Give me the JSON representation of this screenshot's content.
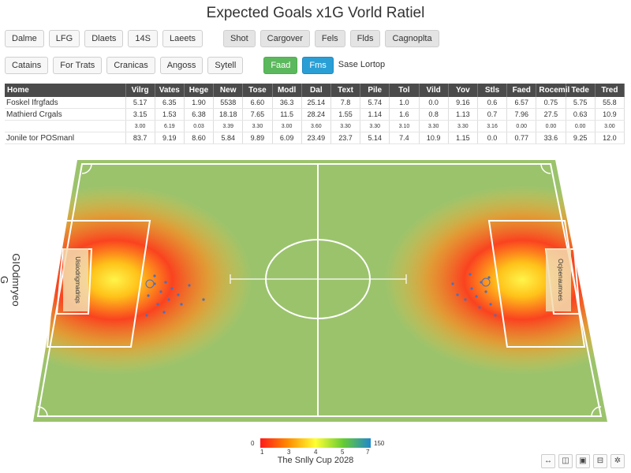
{
  "title": "Expected Goals x1G Vorld Ratiel",
  "toolbar1": {
    "left": [
      "Dalme",
      "LFG",
      "Dlaets",
      "14S",
      "Laeets"
    ],
    "right": [
      "Shot",
      "Cargover",
      "Fels",
      "Flds",
      "Cagnoplta"
    ]
  },
  "toolbar2": {
    "buttons": [
      "Catains",
      "For Trats",
      "Cranicas",
      "Angoss",
      "Sytell"
    ],
    "green": "Faad",
    "blue": "Fms",
    "link": "Sase Lortop"
  },
  "table": {
    "columns": [
      "Home",
      "Vilrg",
      "Vates",
      "Hege",
      "New",
      "Tose",
      "Modl",
      "Dal",
      "Text",
      "Pile",
      "Tol",
      "Vild",
      "Yov",
      "Stls",
      "Faed",
      "Rocemil",
      "Tede",
      "Tred"
    ],
    "rows": [
      {
        "name": "Foskel Ifrgfads",
        "cells": [
          "5.17",
          "6.35",
          "1.90",
          "5538",
          "6.60",
          "36.3",
          "25.14",
          "7.8",
          "5.74",
          "1.0",
          "0.0",
          "9.16",
          "0.6",
          "6.57",
          "0.75",
          "5.75",
          "55.8"
        ]
      },
      {
        "name": "Mathierd Crgals",
        "cells": [
          "3.15",
          "1.53",
          "6.38",
          "18.18",
          "7.65",
          "11.5",
          "28.24",
          "1.55",
          "1.14",
          "1.6",
          "0.8",
          "1.13",
          "0.7",
          "7.96",
          "27.5",
          "0.63",
          "10.9"
        ]
      },
      {
        "name": "",
        "cells": [
          "3.00",
          "6.19",
          "0.03",
          "3.39",
          "3.30",
          "3.00",
          "3.60",
          "3.30",
          "3.30",
          "3.10",
          "3.30",
          "3.30",
          "3.16",
          "0.00",
          "0.00",
          "0.00",
          "3.00"
        ]
      },
      {
        "name": "Jonile tor POSmanl",
        "cells": [
          "83.7",
          "9.19",
          "8.60",
          "5.84",
          "9.89",
          "6.09",
          "23.49",
          "23.7",
          "5.14",
          "7.4",
          "10.9",
          "1.15",
          "0.0",
          "0.77",
          "33.6",
          "9.25",
          "12.0"
        ]
      }
    ]
  },
  "pitch": {
    "y_label": "GIOdmryeo G",
    "left_goal_text": "Uisiodrigmadriqs",
    "right_goal_text": "Ocjoenaumoes"
  },
  "colorbar": {
    "min_label": "0",
    "max_label": "150",
    "tick_labels": [
      "1",
      "3",
      "4",
      "5",
      "7"
    ],
    "colors": [
      "#ff1a1a",
      "#ff8c00",
      "#ffff33",
      "#66cc33",
      "#2288cc"
    ]
  },
  "caption": "The Snlly Cup 2028",
  "tools": [
    "reset-icon",
    "photo-icon",
    "image-icon",
    "save-icon",
    "settings-icon"
  ]
}
